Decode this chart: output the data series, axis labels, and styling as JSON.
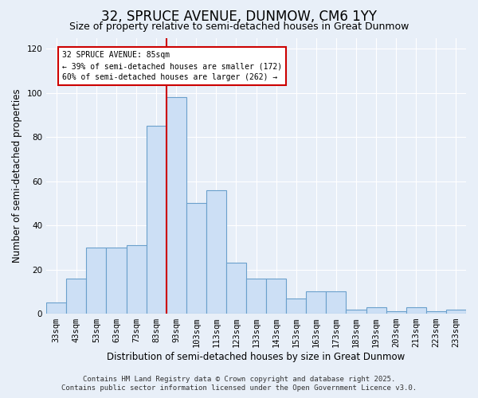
{
  "title": "32, SPRUCE AVENUE, DUNMOW, CM6 1YY",
  "subtitle": "Size of property relative to semi-detached houses in Great Dunmow",
  "xlabel": "Distribution of semi-detached houses by size in Great Dunmow",
  "ylabel": "Number of semi-detached properties",
  "categories": [
    "33sqm",
    "43sqm",
    "53sqm",
    "63sqm",
    "73sqm",
    "83sqm",
    "93sqm",
    "103sqm",
    "113sqm",
    "123sqm",
    "133sqm",
    "143sqm",
    "153sqm",
    "163sqm",
    "173sqm",
    "183sqm",
    "193sqm",
    "203sqm",
    "213sqm",
    "223sqm",
    "233sqm"
  ],
  "values": [
    5,
    16,
    30,
    30,
    31,
    85,
    98,
    50,
    56,
    23,
    16,
    16,
    7,
    10,
    10,
    2,
    3,
    1,
    3,
    1,
    2
  ],
  "bar_color": "#ccdff5",
  "bar_edge_color": "#6aa0cc",
  "line_color": "#cc0000",
  "ylim": [
    0,
    125
  ],
  "yticks": [
    0,
    20,
    40,
    60,
    80,
    100,
    120
  ],
  "annotation_title": "32 SPRUCE AVENUE: 85sqm",
  "annotation_line1": "← 39% of semi-detached houses are smaller (172)",
  "annotation_line2": "60% of semi-detached houses are larger (262) →",
  "annotation_box_color": "#ffffff",
  "annotation_box_edge": "#cc0000",
  "footer_line1": "Contains HM Land Registry data © Crown copyright and database right 2025.",
  "footer_line2": "Contains public sector information licensed under the Open Government Licence v3.0.",
  "bg_color": "#e8eff8",
  "plot_bg_color": "#e8eff8",
  "title_fontsize": 12,
  "subtitle_fontsize": 9,
  "axis_label_fontsize": 8.5,
  "tick_fontsize": 7.5,
  "footer_fontsize": 6.5,
  "line_bar_index": 6
}
